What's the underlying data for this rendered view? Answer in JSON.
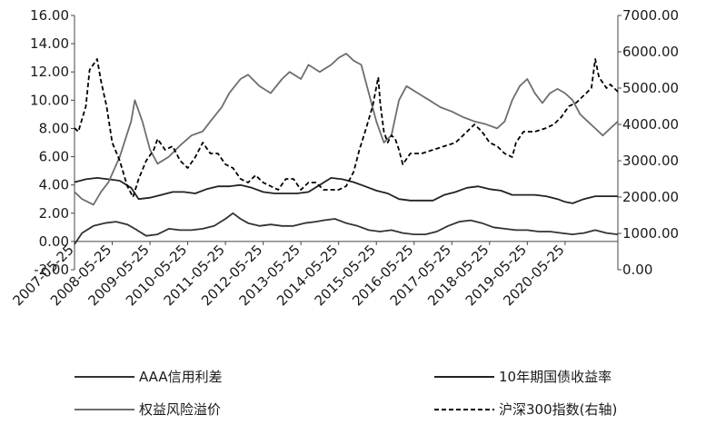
{
  "chart_data": {
    "type": "line",
    "x_labels": [
      "2007-05-25",
      "2008-05-25",
      "2009-05-25",
      "2010-05-25",
      "2011-05-25",
      "2012-05-25",
      "2013-05-25",
      "2014-05-25",
      "2015-05-25",
      "2016-05-25",
      "2017-05-25",
      "2018-05-25",
      "2019-05-25",
      "2020-05-25"
    ],
    "y_left": {
      "min": -2,
      "max": 16,
      "step": 2,
      "tick_labels": [
        "-2.00",
        "0.00",
        "2.00",
        "4.00",
        "6.00",
        "8.00",
        "10.00",
        "12.00",
        "14.00",
        "16.00"
      ]
    },
    "y_right": {
      "min": 0,
      "max": 7000,
      "step": 1000,
      "tick_labels": [
        "0.00",
        "1000.00",
        "2000.00",
        "3000.00",
        "4000.00",
        "5000.00",
        "6000.00",
        "7000.00"
      ]
    },
    "x_range": [
      2007.4,
      2021.8
    ],
    "grid": false,
    "legend_position": "bottom",
    "series": [
      {
        "name": "AAA信用利差",
        "axis": "left",
        "color": "#333333",
        "dash": "solid",
        "x": [
          2007.4,
          2007.6,
          2007.9,
          2008.2,
          2008.5,
          2008.8,
          2009.0,
          2009.3,
          2009.6,
          2009.9,
          2010.2,
          2010.5,
          2010.8,
          2011.1,
          2011.4,
          2011.6,
          2011.8,
          2012.0,
          2012.3,
          2012.6,
          2012.9,
          2013.2,
          2013.5,
          2013.8,
          2014.0,
          2014.3,
          2014.6,
          2014.9,
          2015.2,
          2015.5,
          2015.8,
          2016.1,
          2016.4,
          2016.7,
          2017.0,
          2017.3,
          2017.6,
          2017.9,
          2018.2,
          2018.5,
          2018.8,
          2019.1,
          2019.4,
          2019.7,
          2020.0,
          2020.3,
          2020.6,
          2020.9,
          2021.2,
          2021.5,
          2021.8
        ],
        "y": [
          -0.2,
          0.6,
          1.1,
          1.3,
          1.4,
          1.2,
          0.9,
          0.4,
          0.5,
          0.9,
          0.8,
          0.8,
          0.9,
          1.1,
          1.6,
          2.0,
          1.6,
          1.3,
          1.1,
          1.2,
          1.1,
          1.1,
          1.3,
          1.4,
          1.5,
          1.6,
          1.3,
          1.1,
          0.8,
          0.7,
          0.8,
          0.6,
          0.5,
          0.5,
          0.7,
          1.1,
          1.4,
          1.5,
          1.3,
          1.0,
          0.9,
          0.8,
          0.8,
          0.7,
          0.7,
          0.6,
          0.5,
          0.6,
          0.8,
          0.6,
          0.5
        ]
      },
      {
        "name": "10年期国债收益率",
        "axis": "left",
        "color": "#222222",
        "dash": "solid",
        "x": [
          2007.4,
          2007.7,
          2008.0,
          2008.3,
          2008.6,
          2008.9,
          2009.1,
          2009.4,
          2009.7,
          2010.0,
          2010.3,
          2010.6,
          2010.9,
          2011.2,
          2011.5,
          2011.8,
          2012.1,
          2012.4,
          2012.7,
          2013.0,
          2013.3,
          2013.6,
          2013.9,
          2014.2,
          2014.5,
          2014.8,
          2015.1,
          2015.4,
          2015.7,
          2016.0,
          2016.3,
          2016.6,
          2016.9,
          2017.2,
          2017.5,
          2017.8,
          2018.1,
          2018.4,
          2018.7,
          2019.0,
          2019.3,
          2019.6,
          2019.9,
          2020.2,
          2020.4,
          2020.6,
          2020.9,
          2021.2,
          2021.5,
          2021.8
        ],
        "y": [
          4.2,
          4.4,
          4.5,
          4.4,
          4.3,
          3.8,
          3.0,
          3.1,
          3.3,
          3.5,
          3.5,
          3.4,
          3.7,
          3.9,
          3.9,
          4.0,
          3.8,
          3.5,
          3.4,
          3.4,
          3.4,
          3.5,
          4.0,
          4.5,
          4.4,
          4.2,
          3.9,
          3.6,
          3.4,
          3.0,
          2.9,
          2.9,
          2.9,
          3.3,
          3.5,
          3.8,
          3.9,
          3.7,
          3.6,
          3.3,
          3.3,
          3.3,
          3.2,
          3.0,
          2.8,
          2.7,
          3.0,
          3.2,
          3.2,
          3.2
        ]
      },
      {
        "name": "权益风险溢价",
        "axis": "left",
        "color": "#6e6e6e",
        "dash": "solid",
        "x": [
          2007.4,
          2007.6,
          2007.9,
          2008.1,
          2008.3,
          2008.6,
          2008.9,
          2009.0,
          2009.2,
          2009.4,
          2009.6,
          2009.9,
          2010.2,
          2010.5,
          2010.8,
          2011.0,
          2011.3,
          2011.5,
          2011.8,
          2012.0,
          2012.3,
          2012.6,
          2012.9,
          2013.1,
          2013.4,
          2013.6,
          2013.9,
          2014.2,
          2014.4,
          2014.6,
          2014.8,
          2015.0,
          2015.2,
          2015.4,
          2015.6,
          2015.8,
          2016.0,
          2016.2,
          2016.5,
          2016.8,
          2017.1,
          2017.4,
          2017.7,
          2018.0,
          2018.3,
          2018.6,
          2018.8,
          2019.0,
          2019.2,
          2019.4,
          2019.6,
          2019.8,
          2020.0,
          2020.2,
          2020.4,
          2020.6,
          2020.8,
          2021.0,
          2021.2,
          2021.4,
          2021.6,
          2021.8
        ],
        "y": [
          3.5,
          3.0,
          2.6,
          3.5,
          4.2,
          6.0,
          8.5,
          10.0,
          8.5,
          6.5,
          5.5,
          6.0,
          6.8,
          7.5,
          7.8,
          8.5,
          9.5,
          10.5,
          11.5,
          11.8,
          11.0,
          10.5,
          11.5,
          12.0,
          11.5,
          12.5,
          12.0,
          12.5,
          13.0,
          13.3,
          12.8,
          12.5,
          10.5,
          8.5,
          7.0,
          7.5,
          10.0,
          11.0,
          10.5,
          10.0,
          9.5,
          9.2,
          8.8,
          8.5,
          8.3,
          8.0,
          8.5,
          10.0,
          11.0,
          11.5,
          10.5,
          9.8,
          10.5,
          10.8,
          10.5,
          10.0,
          9.0,
          8.5,
          8.0,
          7.5,
          8.0,
          8.5
        ]
      },
      {
        "name": "沪深300指数(右轴)",
        "axis": "right",
        "color": "#000000",
        "dash": "dashed",
        "x": [
          2007.4,
          2007.5,
          2007.7,
          2007.8,
          2008.0,
          2008.1,
          2008.25,
          2008.4,
          2008.6,
          2008.8,
          2008.95,
          2009.1,
          2009.3,
          2009.5,
          2009.6,
          2009.8,
          2010.0,
          2010.2,
          2010.4,
          2010.6,
          2010.8,
          2011.0,
          2011.2,
          2011.4,
          2011.6,
          2011.8,
          2012.0,
          2012.2,
          2012.4,
          2012.6,
          2012.8,
          2013.0,
          2013.2,
          2013.4,
          2013.6,
          2013.8,
          2014.0,
          2014.2,
          2014.4,
          2014.6,
          2014.8,
          2014.95,
          2015.1,
          2015.3,
          2015.45,
          2015.5,
          2015.6,
          2015.7,
          2015.8,
          2015.9,
          2016.0,
          2016.1,
          2016.3,
          2016.6,
          2016.9,
          2017.2,
          2017.5,
          2017.8,
          2018.0,
          2018.2,
          2018.4,
          2018.6,
          2018.8,
          2019.0,
          2019.1,
          2019.3,
          2019.6,
          2019.9,
          2020.1,
          2020.3,
          2020.5,
          2020.7,
          2020.9,
          2021.1,
          2021.2,
          2021.3,
          2021.5,
          2021.6,
          2021.8
        ],
        "y": [
          3900,
          3800,
          4500,
          5500,
          5800,
          5200,
          4500,
          3500,
          3000,
          2300,
          2000,
          2500,
          3000,
          3300,
          3600,
          3300,
          3400,
          3000,
          2800,
          3100,
          3500,
          3200,
          3200,
          2900,
          2800,
          2500,
          2400,
          2600,
          2400,
          2300,
          2200,
          2500,
          2500,
          2200,
          2400,
          2400,
          2200,
          2200,
          2200,
          2300,
          2700,
          3300,
          3800,
          4500,
          5300,
          4600,
          3800,
          3500,
          3700,
          3600,
          3300,
          2900,
          3200,
          3200,
          3300,
          3400,
          3500,
          3800,
          4000,
          3800,
          3500,
          3400,
          3200,
          3100,
          3500,
          3800,
          3800,
          3900,
          4000,
          4200,
          4500,
          4600,
          4800,
          5000,
          5800,
          5300,
          5000,
          5100,
          4900
        ]
      }
    ]
  }
}
